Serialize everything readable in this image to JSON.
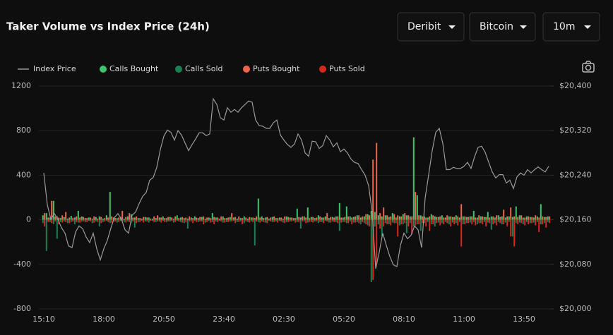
{
  "controls": [
    "Deribit",
    "Bitcoin",
    "10m"
  ],
  "chart_data": {
    "type": "bar",
    "title": "Taker Volume vs Index Price (24h)",
    "categories": [
      "15:10",
      null,
      null,
      null,
      null,
      null,
      null,
      null,
      null,
      null,
      null,
      null,
      null,
      null,
      null,
      null,
      null,
      "18:00",
      null,
      null,
      null,
      null,
      null,
      null,
      null,
      null,
      null,
      null,
      null,
      null,
      null,
      null,
      null,
      null,
      "20:50",
      null,
      null,
      null,
      null,
      null,
      null,
      null,
      null,
      null,
      null,
      null,
      null,
      null,
      null,
      null,
      null,
      "23:40",
      null,
      null,
      null,
      null,
      null,
      null,
      null,
      null,
      null,
      null,
      null,
      null,
      null,
      null,
      null,
      null,
      "02:30",
      null,
      null,
      null,
      null,
      null,
      null,
      null,
      null,
      null,
      null,
      null,
      null,
      null,
      null,
      null,
      null,
      "05:20",
      null,
      null,
      null,
      null,
      null,
      null,
      null,
      null,
      null,
      null,
      null,
      null,
      null,
      null,
      null,
      null,
      "08:10",
      null,
      null,
      null,
      null,
      null,
      null,
      null,
      null,
      null,
      null,
      null,
      null,
      null,
      null,
      null,
      null,
      "11:00",
      null,
      null,
      null,
      null,
      null,
      null,
      null,
      null,
      null,
      null,
      null,
      null,
      null,
      null,
      null,
      null,
      "13:50",
      null,
      null,
      null,
      null,
      null,
      null,
      null
    ],
    "series": [
      {
        "name": "Index Price",
        "type": "line",
        "axis": "y2",
        "color": "#9a9a9a",
        "values": [
          20244,
          20187,
          20161,
          20171,
          20161,
          20146,
          20136,
          20113,
          20110,
          20138,
          20149,
          20144,
          20129,
          20119,
          20136,
          20108,
          20088,
          20108,
          20123,
          20145,
          20164,
          20171,
          20161,
          20142,
          20136,
          20168,
          20174,
          20189,
          20202,
          20209,
          20231,
          20236,
          20254,
          20286,
          20310,
          20321,
          20317,
          20303,
          20320,
          20312,
          20298,
          20284,
          20295,
          20305,
          20316,
          20316,
          20311,
          20314,
          20377,
          20367,
          20343,
          20339,
          20361,
          20353,
          20358,
          20353,
          20361,
          20367,
          20373,
          20371,
          20339,
          20329,
          20328,
          20324,
          20324,
          20334,
          20339,
          20312,
          20303,
          20295,
          20290,
          20296,
          20314,
          20303,
          20280,
          20274,
          20301,
          20300,
          20288,
          20293,
          20311,
          20303,
          20291,
          20298,
          20282,
          20287,
          20280,
          20269,
          20263,
          20261,
          20250,
          20240,
          20221,
          20174,
          20072,
          20102,
          20136,
          20114,
          20094,
          20079,
          20076,
          20114,
          20136,
          20126,
          20132,
          20149,
          20142,
          20110,
          20199,
          20241,
          20284,
          20317,
          20324,
          20297,
          20250,
          20250,
          20254,
          20252,
          20252,
          20256,
          20263,
          20252,
          20273,
          20290,
          20292,
          20281,
          20263,
          20246,
          20235,
          20241,
          20241,
          20226,
          20231,
          20216,
          20237,
          20244,
          20240,
          20250,
          20244,
          20250,
          20255,
          20250,
          20246,
          20256
        ]
      },
      {
        "name": "Calls Bought",
        "type": "bar",
        "color": "#3ec46d",
        "values": [
          40,
          60,
          20,
          170,
          30,
          15,
          25,
          10,
          35,
          20,
          80,
          30,
          15,
          20,
          10,
          25,
          30,
          10,
          40,
          250,
          20,
          15,
          25,
          10,
          30,
          50,
          20,
          15,
          10,
          25,
          20,
          10,
          15,
          20,
          30,
          15,
          25,
          10,
          40,
          20,
          15,
          10,
          20,
          30,
          15,
          25,
          10,
          20,
          60,
          20,
          10,
          30,
          15,
          25,
          20,
          10,
          15,
          30,
          10,
          20,
          15,
          190,
          30,
          20,
          10,
          25,
          15,
          20,
          10,
          30,
          20,
          15,
          100,
          20,
          30,
          110,
          25,
          15,
          40,
          20,
          30,
          15,
          25,
          30,
          150,
          20,
          120,
          30,
          25,
          40,
          20,
          30,
          50,
          80,
          70,
          40,
          30,
          40,
          25,
          60,
          20,
          30,
          50,
          40,
          30,
          740,
          220,
          40,
          30,
          20,
          50,
          30,
          25,
          40,
          20,
          30,
          25,
          40,
          20,
          30,
          25,
          30,
          80,
          20,
          30,
          25,
          70,
          30,
          20,
          40,
          30,
          20,
          30,
          25,
          120,
          40,
          20,
          30,
          25,
          20,
          30,
          140,
          25,
          30
        ]
      },
      {
        "name": "Calls Sold",
        "type": "bar",
        "color": "#1a7f55",
        "values": [
          -30,
          -280,
          -20,
          -40,
          -170,
          -20,
          -15,
          -30,
          -20,
          -40,
          -25,
          -15,
          -20,
          -10,
          -30,
          -15,
          -60,
          -20,
          -10,
          -30,
          -15,
          -25,
          -10,
          -20,
          -15,
          -30,
          -70,
          -20,
          -10,
          -15,
          -25,
          -10,
          -20,
          -15,
          -10,
          -20,
          -15,
          -25,
          -10,
          -20,
          -30,
          -80,
          -15,
          -10,
          -20,
          -15,
          -25,
          -10,
          -20,
          -15,
          -10,
          -25,
          -20,
          -15,
          -10,
          -20,
          -15,
          -30,
          -20,
          -15,
          -230,
          -20,
          -15,
          -25,
          -10,
          -20,
          -15,
          -10,
          -25,
          -20,
          -15,
          -10,
          -20,
          -80,
          -15,
          -25,
          -20,
          -15,
          -30,
          -20,
          -10,
          -25,
          -15,
          -20,
          -100,
          -20,
          -30,
          -15,
          -25,
          -20,
          -40,
          -30,
          -50,
          -560,
          -60,
          -40,
          -150,
          -30,
          -40,
          -25,
          -30,
          -50,
          -40,
          -120,
          -30,
          -60,
          -40,
          -100,
          -30,
          -20,
          -40,
          -60,
          -25,
          -30,
          -20,
          -40,
          -25,
          -30,
          -20,
          -40,
          -30,
          -25,
          -20,
          -40,
          -30,
          -20,
          -25,
          -90,
          -30,
          -20,
          -40,
          -25,
          -20,
          -150,
          -30,
          -25,
          -40,
          -20,
          -30,
          -25,
          -20,
          -40,
          -30,
          -20
        ]
      },
      {
        "name": "Puts Bought",
        "type": "bar",
        "color": "#f0634a",
        "values": [
          60,
          20,
          170,
          30,
          20,
          40,
          70,
          20,
          15,
          30,
          20,
          25,
          15,
          20,
          30,
          10,
          25,
          15,
          20,
          30,
          15,
          20,
          80,
          25,
          60,
          20,
          30,
          15,
          25,
          20,
          10,
          30,
          40,
          20,
          15,
          25,
          20,
          30,
          15,
          25,
          20,
          30,
          15,
          20,
          25,
          30,
          20,
          15,
          25,
          20,
          30,
          15,
          20,
          60,
          25,
          30,
          15,
          20,
          25,
          20,
          30,
          20,
          15,
          25,
          20,
          30,
          15,
          20,
          30,
          25,
          20,
          15,
          25,
          30,
          20,
          15,
          25,
          20,
          30,
          20,
          60,
          25,
          20,
          30,
          20,
          25,
          30,
          20,
          30,
          40,
          30,
          50,
          40,
          540,
          690,
          60,
          110,
          40,
          30,
          50,
          40,
          30,
          60,
          40,
          30,
          250,
          40,
          30,
          20,
          30,
          40,
          25,
          30,
          20,
          40,
          30,
          25,
          30,
          140,
          30,
          25,
          30,
          20,
          40,
          30,
          25,
          20,
          30,
          40,
          25,
          90,
          30,
          110,
          30,
          25,
          40,
          20,
          30,
          25,
          40,
          20,
          30,
          25,
          30
        ]
      },
      {
        "name": "Puts Sold",
        "type": "bar",
        "color": "#d9261c",
        "values": [
          -60,
          -20,
          -30,
          -15,
          -40,
          -25,
          -20,
          -30,
          -15,
          -20,
          -25,
          -15,
          -20,
          -15,
          -25,
          -20,
          -30,
          -15,
          -20,
          -25,
          -15,
          -20,
          -10,
          -25,
          -20,
          -15,
          -30,
          -20,
          -25,
          -15,
          -10,
          -20,
          -15,
          -25,
          -20,
          -15,
          -10,
          -20,
          -15,
          -25,
          -20,
          -15,
          -30,
          -20,
          -15,
          -40,
          -20,
          -25,
          -40,
          -20,
          -15,
          -25,
          -20,
          -15,
          -30,
          -20,
          -40,
          -15,
          -25,
          -20,
          -15,
          -25,
          -20,
          -30,
          -15,
          -20,
          -25,
          -15,
          -30,
          -20,
          -15,
          -25,
          -20,
          -15,
          -30,
          -20,
          -25,
          -15,
          -20,
          -30,
          -15,
          -25,
          -20,
          -30,
          -25,
          -20,
          -30,
          -40,
          -25,
          -30,
          -20,
          -40,
          -60,
          -540,
          -400,
          -80,
          -60,
          -40,
          -50,
          -30,
          -150,
          -40,
          -30,
          -60,
          -130,
          -50,
          -40,
          -30,
          -60,
          -100,
          -40,
          -30,
          -50,
          -40,
          -30,
          -60,
          -40,
          -50,
          -240,
          -40,
          -30,
          -40,
          -50,
          -30,
          -40,
          -60,
          -30,
          -40,
          -50,
          -30,
          -40,
          -60,
          -150,
          -240,
          -40,
          -30,
          -50,
          -40,
          -30,
          -50,
          -110,
          -40,
          -70,
          -30
        ]
      }
    ],
    "ylim": [
      -800,
      1200
    ],
    "yticks": [
      1200,
      800,
      400,
      0,
      -400,
      -800
    ],
    "y2lim": [
      20000,
      20400
    ],
    "y2ticks": [
      {
        "value": 20400,
        "label": "$20,400"
      },
      {
        "value": 20320,
        "label": "$20,320"
      },
      {
        "value": 20240,
        "label": "$20,240"
      },
      {
        "value": 20160,
        "label": "$20,160"
      },
      {
        "value": 20080,
        "label": "$20,080"
      },
      {
        "value": 20000,
        "label": "$20,000"
      }
    ],
    "grid": true
  }
}
